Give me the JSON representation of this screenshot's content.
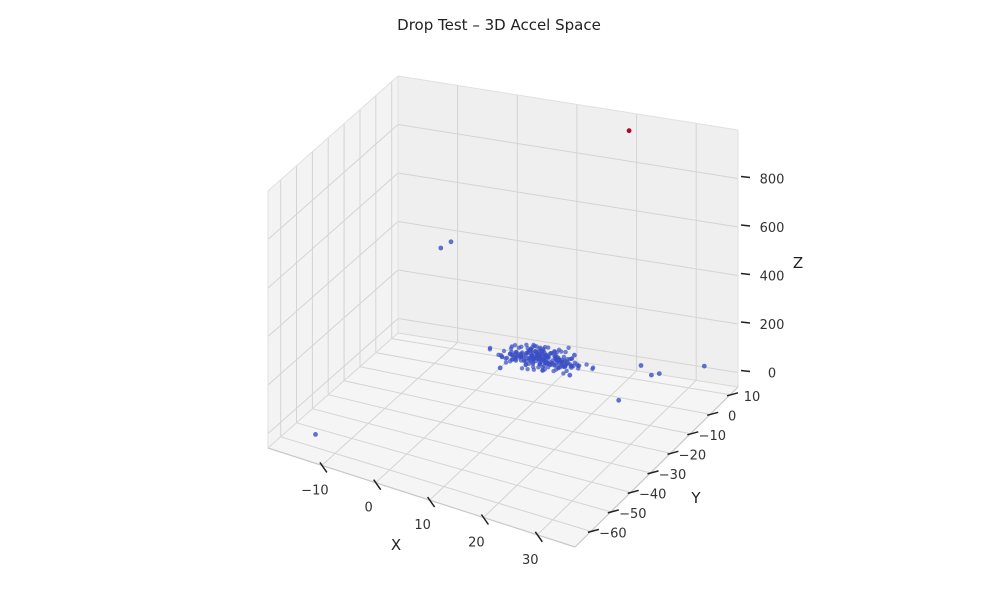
{
  "chart_data": {
    "type": "scatter",
    "projection": "3d",
    "title": "Drop Test – 3D Accel Space",
    "xlabel": "X",
    "ylabel": "Y",
    "zlabel": "Z",
    "xlim": [
      -20,
      37
    ],
    "ylim": [
      -68,
      14
    ],
    "zlim": [
      -60,
      1000
    ],
    "xticks": [
      -10,
      0,
      10,
      20,
      30
    ],
    "yticks": [
      10,
      0,
      -10,
      -20,
      -30,
      -40,
      -50,
      -60
    ],
    "zticks": [
      0,
      200,
      400,
      600,
      800
    ],
    "grid": true,
    "colors": {
      "normal": "#3a4fc4",
      "outlier": "#b40426",
      "pane": "#f2f2f2",
      "grid": "#d4d4d4"
    },
    "cluster": {
      "count": 230,
      "x_center": 8,
      "x_spread": 5,
      "y_center": 0,
      "y_spread": 3.5,
      "z_center": 40,
      "z_spread": 15
    },
    "series": [
      {
        "name": "",
        "color": "#3a4fc4",
        "points": [
          {
            "x": -13,
            "y": -62,
            "z": 10
          },
          {
            "x": 22,
            "y": 10,
            "z": 0
          },
          {
            "x": 26,
            "y": 3,
            "z": 30
          },
          {
            "x": 24,
            "y": -8,
            "z": 0
          },
          {
            "x": 28,
            "y": 1,
            "z": 60
          },
          {
            "x": 33,
            "y": 9,
            "z": 50
          },
          {
            "x": -10,
            "y": 10,
            "z": 380
          },
          {
            "x": -12,
            "y": 11,
            "z": 340
          },
          {
            "x": 3,
            "y": -6,
            "z": 20
          },
          {
            "x": 14,
            "y": -3,
            "z": 20
          },
          {
            "x": 12,
            "y": 6,
            "z": 30
          }
        ]
      },
      {
        "name": "",
        "color": "#b40426",
        "points": [
          {
            "x": 20,
            "y": 10,
            "z": 960
          }
        ]
      }
    ]
  }
}
